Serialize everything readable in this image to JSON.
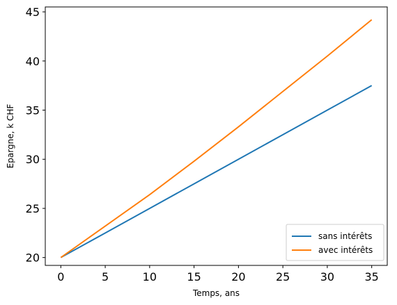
{
  "chart_data": {
    "type": "line",
    "xlabel": "Temps, ans",
    "ylabel": "Epargne, k CHF",
    "xlim": [
      -1.75,
      36.75
    ],
    "ylim": [
      19.2,
      45.5
    ],
    "xticks": [
      0,
      5,
      10,
      15,
      20,
      25,
      30,
      35
    ],
    "yticks": [
      20,
      25,
      30,
      35,
      40,
      45
    ],
    "grid": false,
    "legend": {
      "placement": "lower right"
    },
    "series": [
      {
        "name": "sans intérêts",
        "color": "#1f77b4",
        "x": [
          0,
          5,
          10,
          15,
          20,
          25,
          30,
          35
        ],
        "y": [
          20,
          22.5,
          25,
          27.5,
          30,
          32.5,
          35,
          37.5
        ]
      },
      {
        "name": "avec intérêts",
        "color": "#ff7f0e",
        "x": [
          0,
          5,
          10,
          15,
          20,
          25,
          30,
          35
        ],
        "y": [
          20,
          23.2,
          26.4,
          29.8,
          33.3,
          36.9,
          40.5,
          44.2
        ]
      }
    ]
  }
}
